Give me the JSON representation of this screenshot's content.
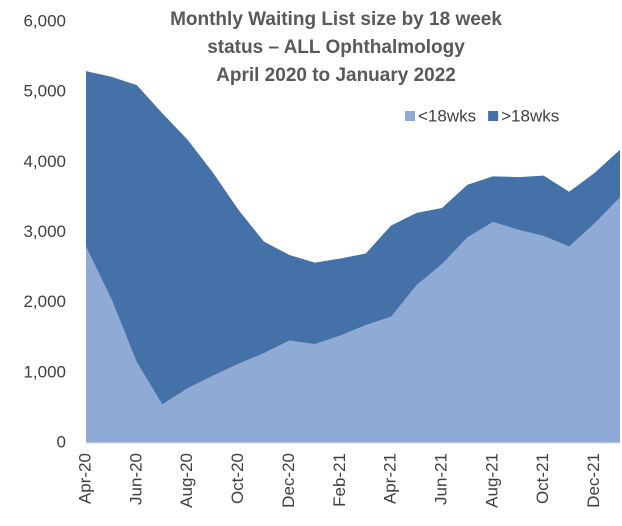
{
  "chart_data": {
    "type": "stacked_area",
    "title_lines": [
      "Monthly Waiting List size by 18 week",
      "status – ALL Ophthalmology",
      "April 2020 to January 2022"
    ],
    "categories": [
      "Apr-20",
      null,
      "Jun-20",
      null,
      "Aug-20",
      null,
      "Oct-20",
      null,
      "Dec-20",
      null,
      "Feb-21",
      null,
      "Apr-21",
      null,
      "Jun-21",
      null,
      "Aug-21",
      null,
      "Oct-21",
      null,
      "Dec-21",
      null
    ],
    "series": [
      {
        "name": "<18wks",
        "color": "#8faad4",
        "values": [
          2800,
          2050,
          1150,
          550,
          780,
          960,
          1130,
          1280,
          1460,
          1410,
          1530,
          1680,
          1800,
          2250,
          2550,
          2930,
          3150,
          3040,
          2950,
          2800,
          3130,
          3500
        ]
      },
      {
        "name": ">18wks",
        "color": "#4472a8",
        "values": [
          2500,
          3170,
          3950,
          4150,
          3540,
          2890,
          2190,
          1590,
          1220,
          1160,
          1100,
          1020,
          1300,
          1030,
          800,
          750,
          650,
          750,
          860,
          780,
          720,
          680
        ]
      }
    ],
    "ylim": [
      0,
      6000
    ],
    "yticks": [
      0,
      {
        "value": 1000,
        "label": "1,000"
      },
      {
        "value": 2000,
        "label": "2,000"
      },
      {
        "value": 3000,
        "label": "3,000"
      },
      {
        "value": 4000,
        "label": "4,000"
      },
      {
        "value": 5000,
        "label": "5,000"
      },
      {
        "value": 6000,
        "label": "6,000"
      }
    ],
    "legend": "upper right",
    "grid": false
  }
}
